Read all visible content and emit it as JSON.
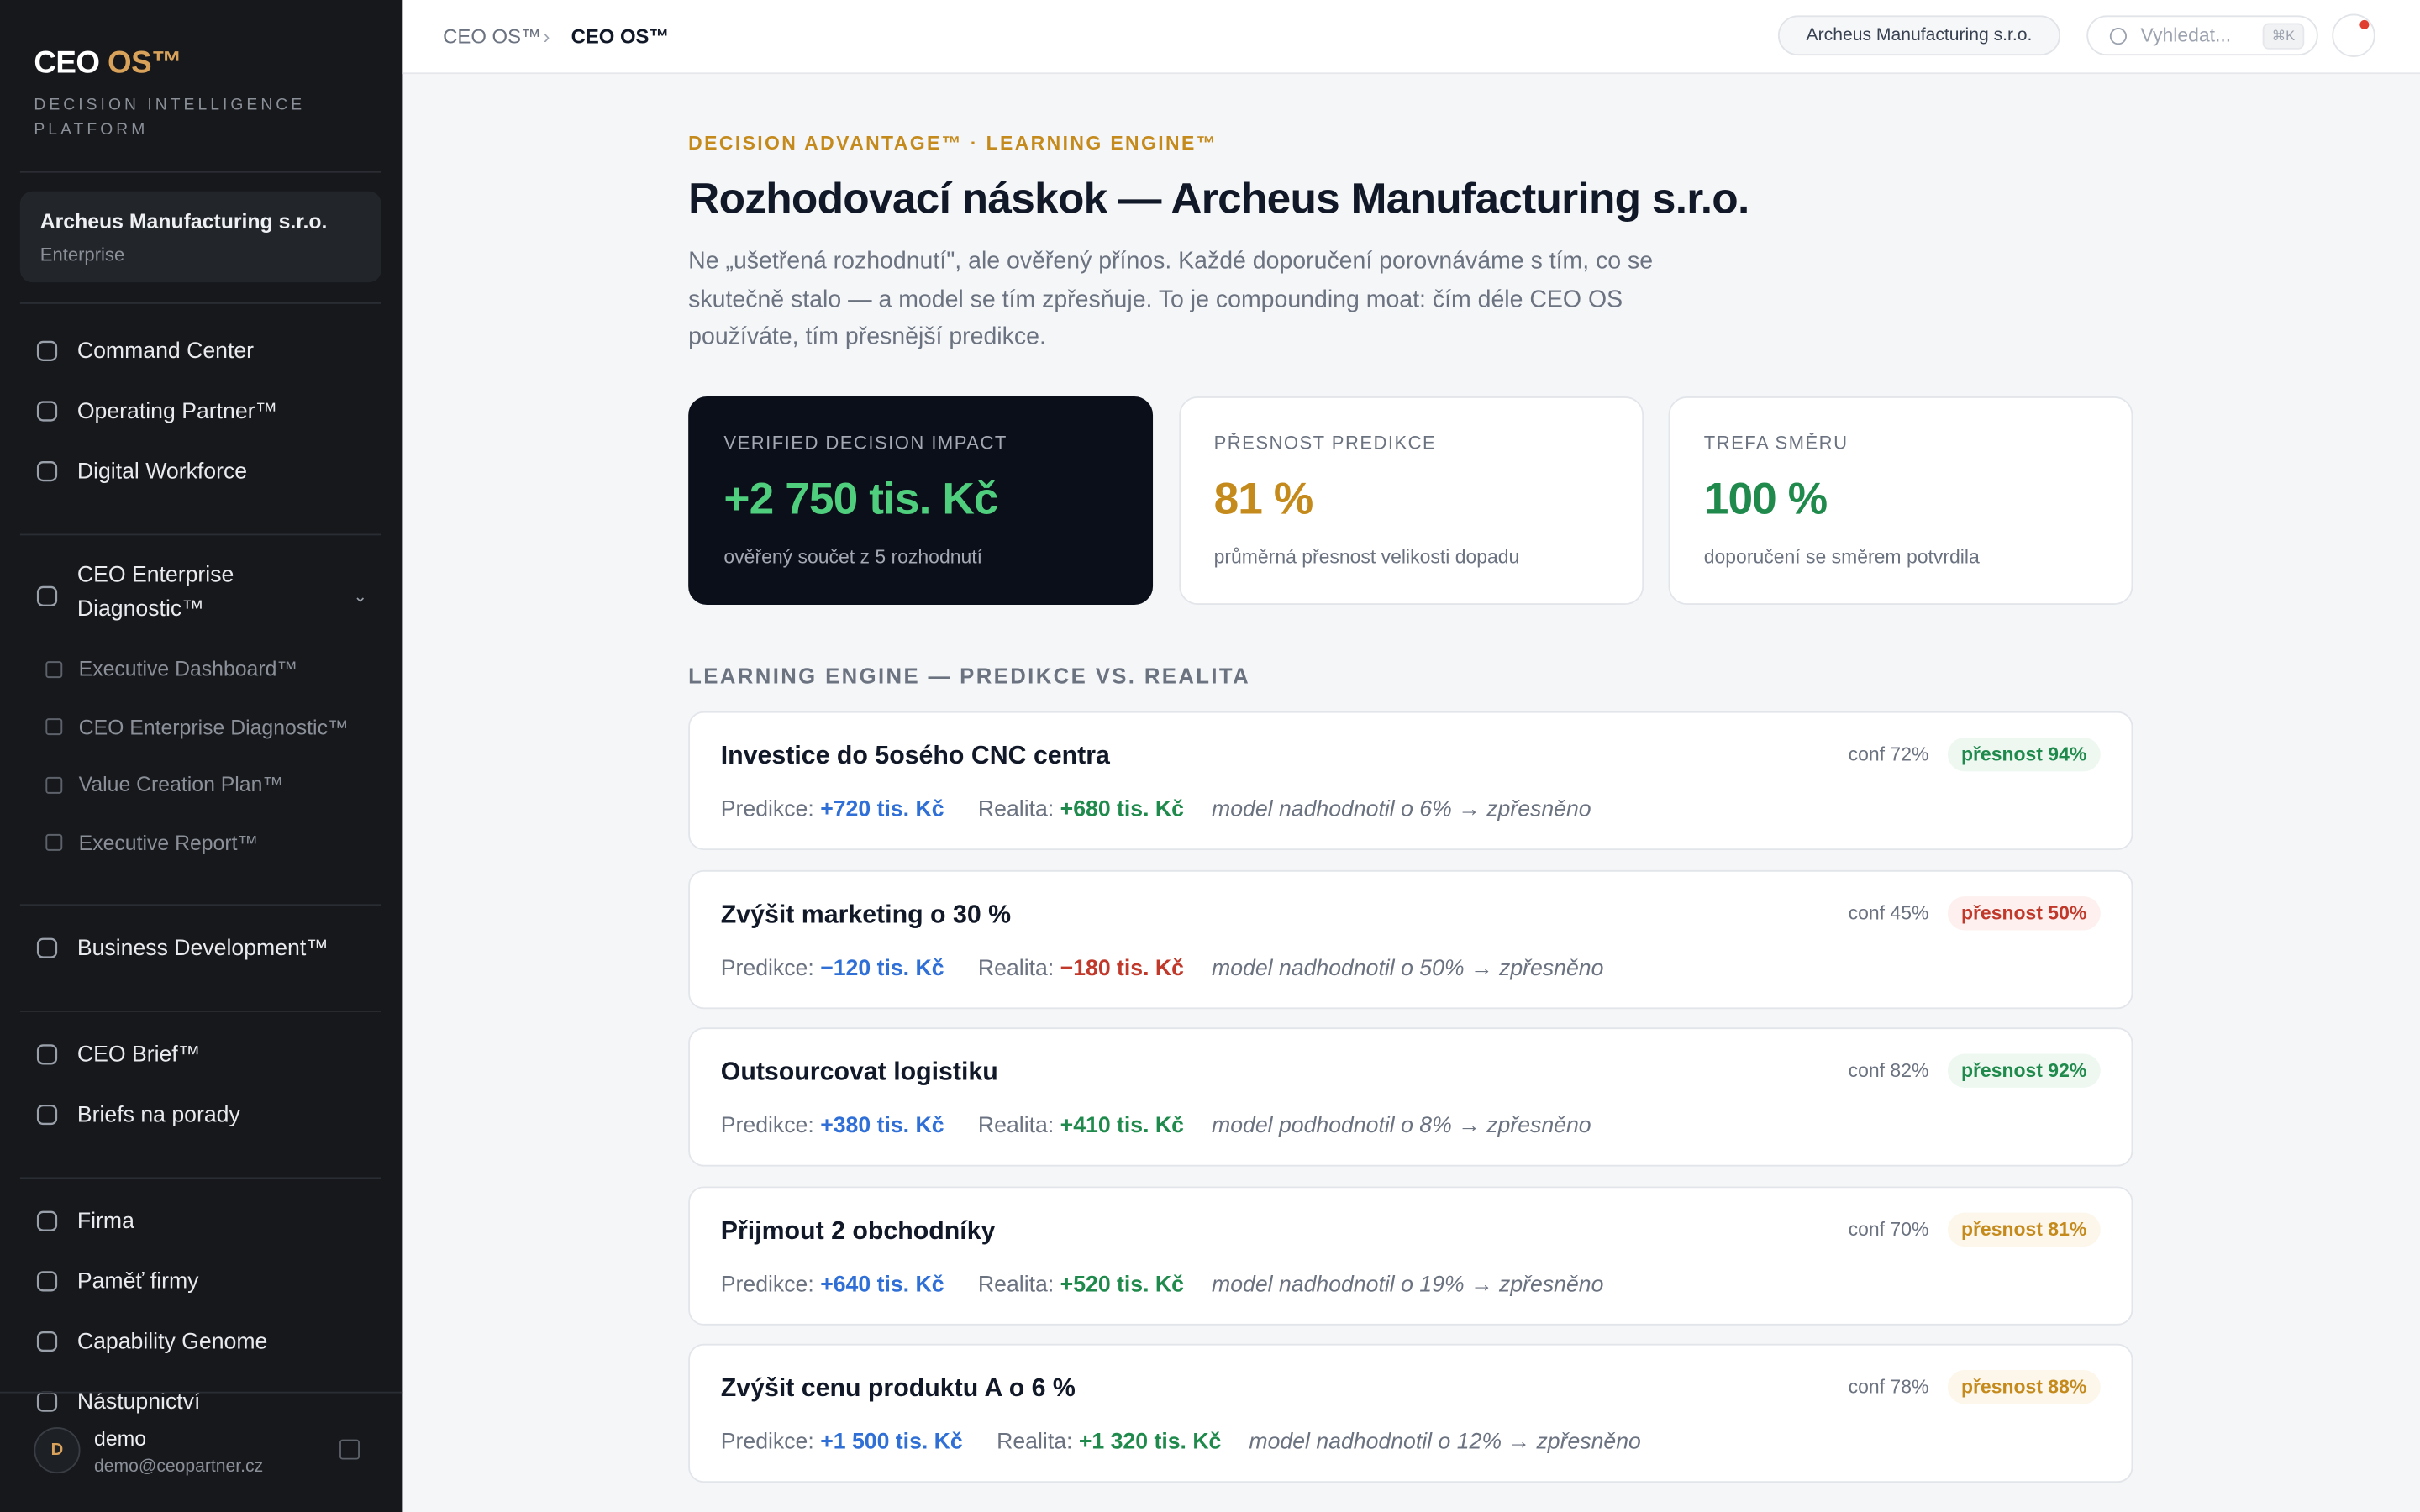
{
  "sidebar": {
    "logo_main": "CEO",
    "logo_accent": "OS™",
    "tagline": "DECISION INTELLIGENCE PLATFORM",
    "org": {
      "name": "Archeus Manufacturing s.r.o.",
      "plan": "Enterprise"
    },
    "nav_groups": [
      {
        "items": [
          "Command Center",
          "Operating Partner™",
          "Digital Workforce"
        ]
      },
      {
        "section": "CEO Enterprise Diagnostic™",
        "items": [
          "Executive Dashboard™",
          "CEO Enterprise Diagnostic™",
          "Value Creation Plan™",
          "Executive Report™"
        ]
      },
      {
        "items": [
          "Business Development™"
        ]
      },
      {
        "items": [
          "CEO Brief™",
          "Briefs na porady"
        ]
      },
      {
        "items": [
          "Firma",
          "Paměť firmy",
          "Capability Genome",
          "Nástupnictví"
        ]
      }
    ],
    "user": {
      "initial": "D",
      "name": "demo",
      "email": "demo@ceopartner.cz"
    }
  },
  "topbar": {
    "breadcrumb": [
      "CEO OS™",
      "CEO OS™"
    ],
    "org_chip": "Archeus Manufacturing s.r.o.",
    "search_placeholder": "Vyhledat...",
    "shortcut": "⌘K"
  },
  "header": {
    "eyebrow": "DECISION ADVANTAGE™ · LEARNING ENGINE™",
    "title": "Rozhodovací náskok — Archeus Manufacturing s.r.o.",
    "lead": "Ne „ušetřená rozhodnutí\", ale ověřený přínos. Každé doporučení porovnáváme s tím, co se skutečně stalo — a model se tím zpřesňuje. To je compounding moat: čím déle CEO OS používáte, tím přesnější predikce."
  },
  "kpis": [
    {
      "label": "VERIFIED DECISION IMPACT",
      "value": "+2 750 tis. Kč",
      "note": "ověřený součet z 5 rozhodnutí",
      "color": "#4fcf7d"
    },
    {
      "label": "PŘESNOST PREDIKCE",
      "value": "81 %",
      "note": "průměrná přesnost velikosti dopadu",
      "color": "#c58a1c"
    },
    {
      "label": "TREFA SMĚRU",
      "value": "100 %",
      "note": "doporučení se směrem potvrdila",
      "color": "#1f8a4c"
    }
  ],
  "section_title": "LEARNING ENGINE — PREDIKCE VS. REALITA",
  "labels": {
    "prediction": "Predikce:",
    "reality": "Realita:"
  },
  "decisions": [
    {
      "title": "Investice do 5osého CNC centra",
      "conf": "conf 72%",
      "accuracy": "přesnost 94%",
      "accuracy_color": "#1f8a4c",
      "accuracy_bg": "#eef8f1",
      "prediction": "+720 tis. Kč",
      "reality": "+680 tis. Kč",
      "reality_color": "#1f8a4c",
      "comment": "model nadhodnotil o 6% → zpřesněno"
    },
    {
      "title": "Zvýšit marketing o 30 %",
      "conf": "conf 45%",
      "accuracy": "přesnost 50%",
      "accuracy_color": "#c0392b",
      "accuracy_bg": "#fdf0ee",
      "prediction": "−120 tis. Kč",
      "reality": "−180 tis. Kč",
      "reality_color": "#c0392b",
      "comment": "model nadhodnotil o 50% → zpřesněno"
    },
    {
      "title": "Outsourcovat logistiku",
      "conf": "conf 82%",
      "accuracy": "přesnost 92%",
      "accuracy_color": "#1f8a4c",
      "accuracy_bg": "#eef8f1",
      "prediction": "+380 tis. Kč",
      "reality": "+410 tis. Kč",
      "reality_color": "#1f8a4c",
      "comment": "model podhodnotil o 8% → zpřesněno"
    },
    {
      "title": "Přijmout 2 obchodníky",
      "conf": "conf 70%",
      "accuracy": "přesnost 81%",
      "accuracy_color": "#c58a1c",
      "accuracy_bg": "#fdf6ea",
      "prediction": "+640 tis. Kč",
      "reality": "+520 tis. Kč",
      "reality_color": "#1f8a4c",
      "comment": "model nadhodnotil o 19% → zpřesněno"
    },
    {
      "title": "Zvýšit cenu produktu A o 6 %",
      "conf": "conf 78%",
      "accuracy": "přesnost 88%",
      "accuracy_color": "#c58a1c",
      "accuracy_bg": "#fdf6ea",
      "prediction": "+1 500 tis. Kč",
      "reality": "+1 320 tis. Kč",
      "reality_color": "#1f8a4c",
      "comment": "model nadhodnotil o 12% → zpřesněno"
    }
  ]
}
